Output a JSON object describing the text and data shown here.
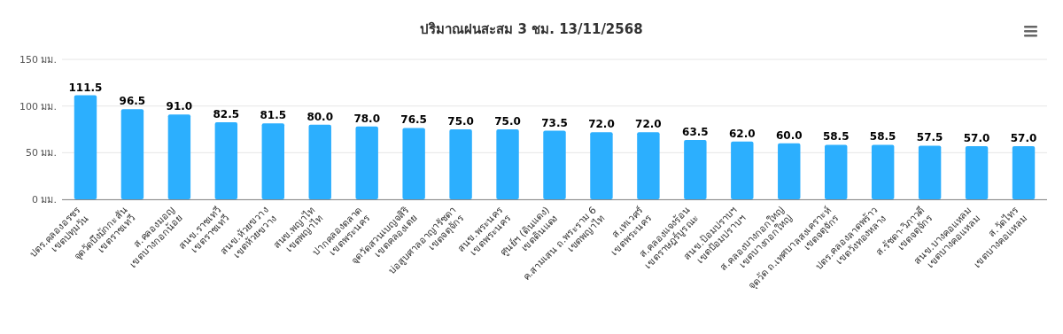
{
  "chart_data": {
    "type": "bar",
    "title": "ปริมาณฝนสะสม 3 ชม. 13/11/2568",
    "categories": [
      "ปตร.คลองอรชร\nเขตปทุมวัน",
      "จุดวัดบึงมักกะสัน\nเขตราชเทวี",
      "ส.คลองมอญ\nเขตบางกอกน้อย",
      "สนข.ราชเทวี\nเขตราชเทวี",
      "สนข.ห้วยขวาง\nเขตห้วยขวาง",
      "สนข.พญาไท\nเขตพญาไท",
      "ปากคลองตลาด\nเขตพระนคร",
      "จุดวัดสวนเบญจสิริ\nเขตคลองเตย",
      "บ่อสูบศาลอาญารัชดา\nเขตจตุจักร",
      "สนข.พระนคร\nเขตพระนคร",
      "ศูนย์ฯ (ดินแดง)\nเขตดินแดง",
      "ค.สามเสน ถ.พระราม 6\nเขตพญาไท",
      "ส.เทเวศร์\nเขตพระนคร",
      "ส.คลองแจงร้อน\nเขตราษฎร์บูรณะ",
      "สนข.ป้อมปราบฯ\nเขตป้อมปราบฯ",
      "ส.คลองบางกอกใหญ่\nเขตบางกอกใหญ่",
      "จุดวัด ถ.เทศบาลสงเคราะห์\nเขตจตุจักร",
      "ปตร.คลองลาดพร้าว\nเขตวังทองหลาง",
      "ส.รัชดา-วิภาวดี\nเขตจตุจักร",
      "สนข.บางคอแหลม\nเขตบางคอแหลม",
      "ส.วัดไทร\nเขตบางคอแหลม"
    ],
    "values": [
      111.5,
      96.5,
      91.0,
      82.5,
      81.5,
      80.0,
      78.0,
      76.5,
      75.0,
      75.0,
      73.5,
      72.0,
      72.0,
      63.5,
      62.0,
      60.0,
      58.5,
      58.5,
      57.5,
      57.0,
      57.0
    ],
    "value_labels": [
      "111.5",
      "96.5",
      "91.0",
      "82.5",
      "81.5",
      "80.0",
      "78.0",
      "76.5",
      "75.0",
      "75.0",
      "73.5",
      "72.0",
      "72.0",
      "63.5",
      "62.0",
      "60.0",
      "58.5",
      "58.5",
      "57.5",
      "57.0",
      "57.0"
    ],
    "color": "#2caffe",
    "ylim": [
      0,
      150
    ],
    "yticks": [
      {
        "value": 0,
        "label": "0 มม."
      },
      {
        "value": 50,
        "label": "50 มม."
      },
      {
        "value": 100,
        "label": "100 มม."
      },
      {
        "value": 150,
        "label": "150 มม."
      }
    ],
    "grid": "y"
  }
}
